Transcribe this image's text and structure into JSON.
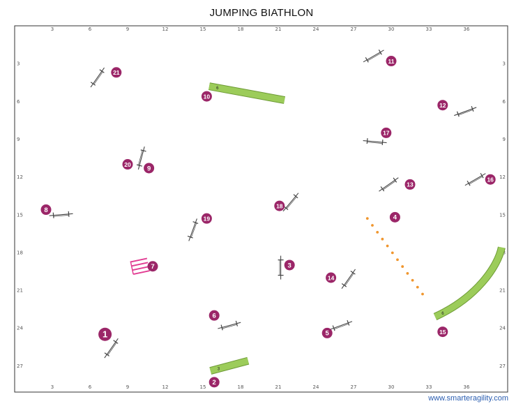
{
  "title": "JUMPING BIATHLON",
  "footer": "www.smarteragility.com",
  "colors": {
    "jump": "#444444",
    "number": "#9b2668",
    "tunnel_fill": "#9ccc5a",
    "tunnel_edge": "#6d9a35",
    "weave": "#f0962e",
    "table": "#e23d93",
    "frame": "#333333"
  },
  "axis_ticks_x": [
    "3",
    "6",
    "9",
    "12",
    "15",
    "18",
    "21",
    "24",
    "27",
    "30",
    "33",
    "36"
  ],
  "axis_ticks_y": [
    "3",
    "6",
    "9",
    "12",
    "15",
    "18",
    "21",
    "24",
    "27"
  ],
  "field": {
    "width_m": 39.5,
    "height_m": 29
  },
  "numbers": [
    {
      "label": "1",
      "x": 7.2,
      "y": 24.5,
      "big": true
    },
    {
      "label": "2",
      "x": 15.9,
      "y": 28.3
    },
    {
      "label": "3",
      "x": 21.9,
      "y": 19.0
    },
    {
      "label": "4",
      "x": 30.3,
      "y": 15.2
    },
    {
      "label": "5",
      "x": 24.9,
      "y": 24.4
    },
    {
      "label": "6",
      "x": 15.9,
      "y": 23.0
    },
    {
      "label": "7",
      "x": 11.0,
      "y": 19.1
    },
    {
      "label": "8",
      "x": 2.5,
      "y": 14.6
    },
    {
      "label": "9",
      "x": 10.7,
      "y": 11.3
    },
    {
      "label": "10",
      "x": 15.3,
      "y": 5.6
    },
    {
      "label": "11",
      "x": 30.0,
      "y": 2.8
    },
    {
      "label": "12",
      "x": 34.1,
      "y": 6.3
    },
    {
      "label": "13",
      "x": 31.5,
      "y": 12.6
    },
    {
      "label": "14",
      "x": 25.2,
      "y": 20.0
    },
    {
      "label": "15",
      "x": 34.1,
      "y": 24.3
    },
    {
      "label": "16",
      "x": 37.9,
      "y": 12.2
    },
    {
      "label": "17",
      "x": 29.6,
      "y": 8.5
    },
    {
      "label": "18",
      "x": 21.1,
      "y": 14.3
    },
    {
      "label": "19",
      "x": 15.3,
      "y": 15.3
    },
    {
      "label": "20",
      "x": 9.0,
      "y": 11.0
    },
    {
      "label": "21",
      "x": 8.1,
      "y": 3.7
    }
  ],
  "jumps": [
    {
      "id": "jump-1",
      "x": 7.7,
      "y": 25.6,
      "angle": -55
    },
    {
      "id": "jump-3",
      "x": 21.2,
      "y": 19.2,
      "angle": 90
    },
    {
      "id": "jump-5",
      "x": 26.0,
      "y": 23.8,
      "angle": -20
    },
    {
      "id": "jump-6",
      "x": 17.1,
      "y": 23.8,
      "angle": -15
    },
    {
      "id": "jump-8",
      "x": 3.7,
      "y": 15.0,
      "angle": -5
    },
    {
      "id": "jump-9",
      "x": 10.1,
      "y": 10.5,
      "angle": 105
    },
    {
      "id": "jump-11",
      "x": 28.6,
      "y": 2.4,
      "angle": -30
    },
    {
      "id": "jump-12",
      "x": 35.9,
      "y": 6.8,
      "angle": -20
    },
    {
      "id": "jump-13",
      "x": 29.8,
      "y": 12.6,
      "angle": -35
    },
    {
      "id": "jump-14",
      "x": 26.6,
      "y": 20.1,
      "angle": -55
    },
    {
      "id": "jump-16",
      "x": 36.7,
      "y": 12.2,
      "angle": -30
    },
    {
      "id": "jump-17",
      "x": 28.7,
      "y": 9.2,
      "angle": 5
    },
    {
      "id": "jump-18",
      "x": 22.0,
      "y": 14.0,
      "angle": -50
    },
    {
      "id": "jump-19",
      "x": 14.2,
      "y": 16.2,
      "angle": -70
    },
    {
      "id": "jump-21",
      "x": 6.6,
      "y": 4.1,
      "angle": -55
    }
  ],
  "tunnels": [
    {
      "id": "tunnel-top",
      "label": "6",
      "path": [
        [
          15.5,
          4.8
        ],
        [
          21.5,
          5.9
        ]
      ]
    },
    {
      "id": "tunnel-bottom",
      "label": "3",
      "path": [
        [
          15.6,
          27.4
        ],
        [
          18.6,
          26.6
        ]
      ]
    },
    {
      "id": "tunnel-curve",
      "label": "6",
      "path": [
        [
          33.5,
          23.1
        ],
        [
          36.8,
          21.6
        ],
        [
          38.5,
          19.1
        ],
        [
          38.8,
          17.6
        ]
      ]
    }
  ],
  "weaves": {
    "from": [
      28.1,
      15.3
    ],
    "to": [
      32.5,
      21.3
    ],
    "poles": 12
  },
  "table": {
    "x": 10.0,
    "y": 19.1
  }
}
